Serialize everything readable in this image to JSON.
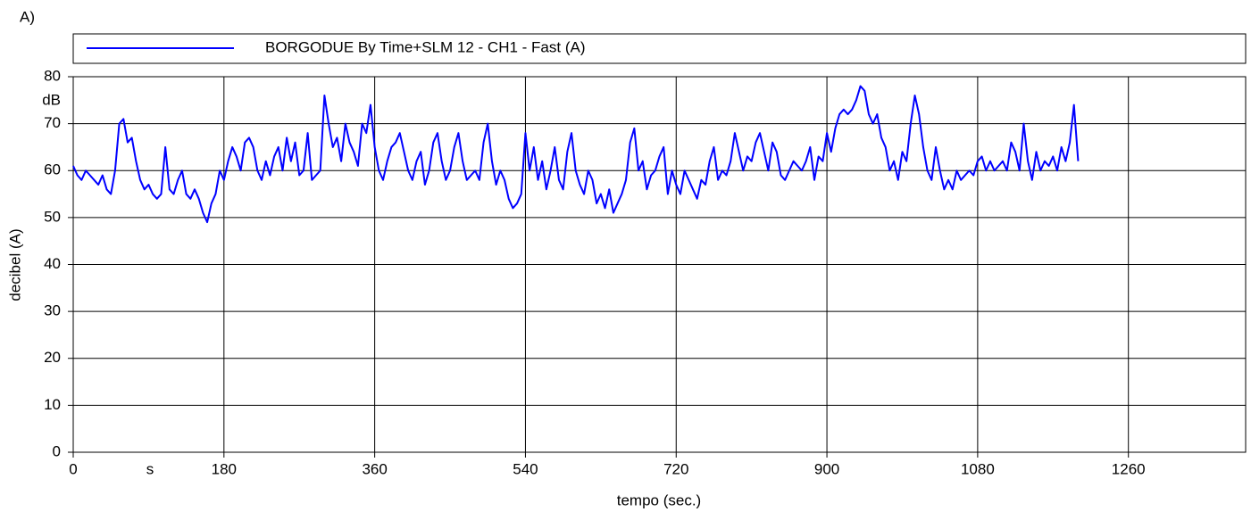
{
  "chart_data": {
    "type": "line",
    "panel_label": "A)",
    "xlabel": "tempo (sec.)",
    "ylabel": "decibel (A)",
    "x_unit": "s",
    "y_unit": "dB",
    "xlim": [
      0,
      1400
    ],
    "xticks": [
      0,
      180,
      360,
      540,
      720,
      900,
      1080,
      1260
    ],
    "ylim": [
      0,
      80
    ],
    "yticks": [
      0,
      10,
      20,
      30,
      40,
      50,
      60,
      70,
      80
    ],
    "grid": true,
    "legend": "top",
    "x": [
      0,
      5,
      10,
      15,
      20,
      25,
      30,
      35,
      40,
      45,
      50,
      55,
      60,
      65,
      70,
      75,
      80,
      85,
      90,
      95,
      100,
      105,
      110,
      115,
      120,
      125,
      130,
      135,
      140,
      145,
      150,
      155,
      160,
      165,
      170,
      175,
      180,
      185,
      190,
      195,
      200,
      205,
      210,
      215,
      220,
      225,
      230,
      235,
      240,
      245,
      250,
      255,
      260,
      265,
      270,
      275,
      280,
      285,
      290,
      295,
      300,
      305,
      310,
      315,
      320,
      325,
      330,
      335,
      340,
      345,
      350,
      355,
      360,
      365,
      370,
      375,
      380,
      385,
      390,
      395,
      400,
      405,
      410,
      415,
      420,
      425,
      430,
      435,
      440,
      445,
      450,
      455,
      460,
      465,
      470,
      475,
      480,
      485,
      490,
      495,
      500,
      505,
      510,
      515,
      520,
      525,
      530,
      535,
      540,
      545,
      550,
      555,
      560,
      565,
      570,
      575,
      580,
      585,
      590,
      595,
      600,
      605,
      610,
      615,
      620,
      625,
      630,
      635,
      640,
      645,
      650,
      655,
      660,
      665,
      670,
      675,
      680,
      685,
      690,
      695,
      700,
      705,
      710,
      715,
      720,
      725,
      730,
      735,
      740,
      745,
      750,
      755,
      760,
      765,
      770,
      775,
      780,
      785,
      790,
      795,
      800,
      805,
      810,
      815,
      820,
      825,
      830,
      835,
      840,
      845,
      850,
      855,
      860,
      865,
      870,
      875,
      880,
      885,
      890,
      895,
      900,
      905,
      910,
      915,
      920,
      925,
      930,
      935,
      940,
      945,
      950,
      955,
      960,
      965,
      970,
      975,
      980,
      985,
      990,
      995,
      1000,
      1005,
      1010,
      1015,
      1020,
      1025,
      1030,
      1035,
      1040,
      1045,
      1050,
      1055,
      1060,
      1065,
      1070,
      1075,
      1080,
      1085,
      1090,
      1095,
      1100,
      1105,
      1110,
      1115,
      1120,
      1125,
      1130,
      1135,
      1140,
      1145,
      1150,
      1155,
      1160,
      1165,
      1170,
      1175,
      1180,
      1185,
      1190,
      1195,
      1200
    ],
    "series": [
      {
        "name": "BORGODUE By Time+SLM 12 - CH1 - Fast (A)",
        "color": "#0000ff",
        "values": [
          61,
          59,
          58,
          60,
          59,
          58,
          57,
          59,
          56,
          55,
          60,
          70,
          71,
          66,
          67,
          62,
          58,
          56,
          57,
          55,
          54,
          55,
          65,
          56,
          55,
          58,
          60,
          55,
          54,
          56,
          54,
          51,
          49,
          53,
          55,
          60,
          58,
          62,
          65,
          63,
          60,
          66,
          67,
          65,
          60,
          58,
          62,
          59,
          63,
          65,
          60,
          67,
          62,
          66,
          59,
          60,
          68,
          58,
          59,
          60,
          76,
          70,
          65,
          67,
          62,
          70,
          66,
          64,
          61,
          70,
          68,
          74,
          65,
          60,
          58,
          62,
          65,
          66,
          68,
          64,
          60,
          58,
          62,
          64,
          57,
          60,
          66,
          68,
          62,
          58,
          60,
          65,
          68,
          62,
          58,
          59,
          60,
          58,
          66,
          70,
          62,
          57,
          60,
          58,
          54,
          52,
          53,
          55,
          68,
          60,
          65,
          58,
          62,
          56,
          60,
          65,
          58,
          56,
          64,
          68,
          60,
          57,
          55,
          60,
          58,
          53,
          55,
          52,
          56,
          51,
          53,
          55,
          58,
          66,
          69,
          60,
          62,
          56,
          59,
          60,
          63,
          65,
          55,
          60,
          57,
          55,
          60,
          58,
          56,
          54,
          58,
          57,
          62,
          65,
          58,
          60,
          59,
          62,
          68,
          64,
          60,
          63,
          62,
          66,
          68,
          64,
          60,
          66,
          64,
          59,
          58,
          60,
          62,
          61,
          60,
          62,
          65,
          58,
          63,
          62,
          68,
          64,
          69,
          72,
          73,
          72,
          73,
          75,
          78,
          77,
          72,
          70,
          72,
          67,
          65,
          60,
          62,
          58,
          64,
          62,
          70,
          76,
          72,
          65,
          60,
          58,
          65,
          60,
          56,
          58,
          56,
          60,
          58,
          59,
          60,
          59,
          62,
          63,
          60,
          62,
          60,
          61,
          62,
          60,
          66,
          64,
          60,
          70,
          62,
          58,
          64,
          60,
          62,
          61,
          63,
          60,
          65,
          62,
          66,
          74,
          62
        ]
      }
    ]
  }
}
